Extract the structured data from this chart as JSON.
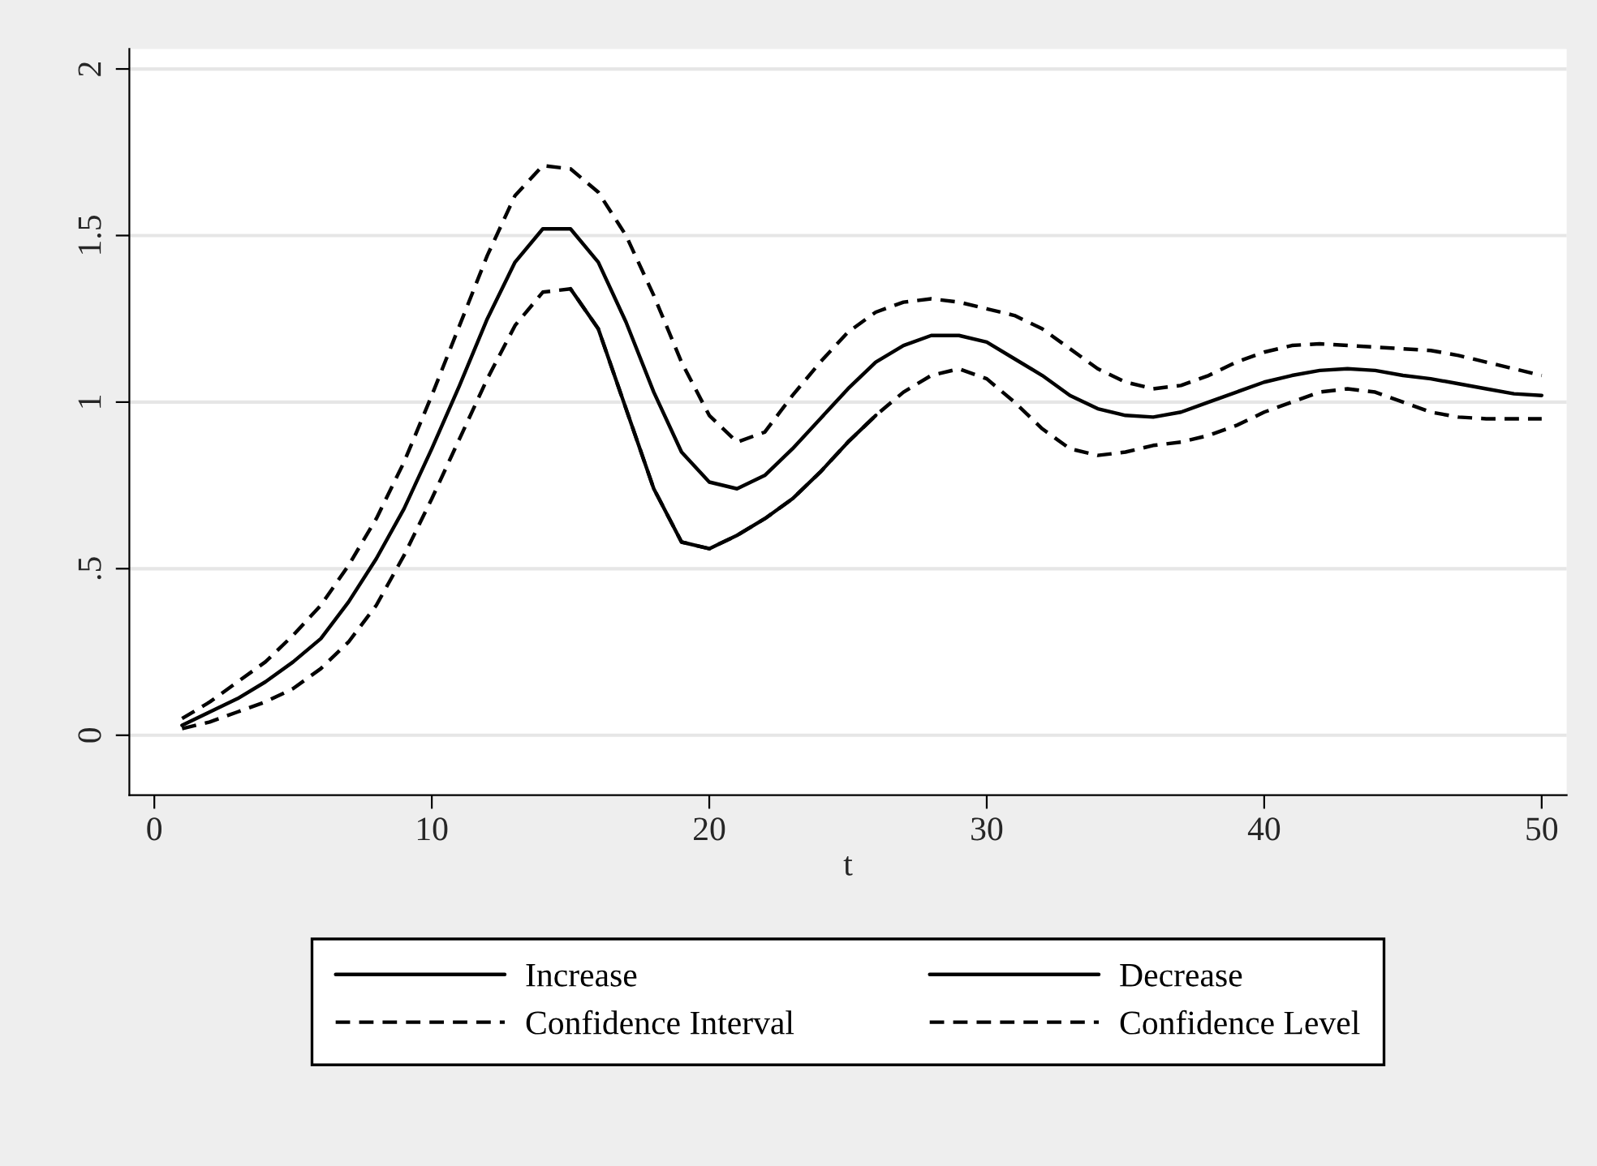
{
  "chart_data": {
    "type": "line",
    "xlabel": "t",
    "x": [
      1,
      2,
      3,
      4,
      5,
      6,
      7,
      8,
      9,
      10,
      11,
      12,
      13,
      14,
      15,
      16,
      17,
      18,
      19,
      20,
      21,
      22,
      23,
      24,
      25,
      26,
      27,
      28,
      29,
      30,
      31,
      32,
      33,
      34,
      35,
      36,
      37,
      38,
      39,
      40,
      41,
      42,
      43,
      44,
      45,
      46,
      47,
      48,
      49,
      50
    ],
    "series": [
      {
        "name": "Increase",
        "color": "#000000",
        "line_style": "solid",
        "values": [
          0.03,
          0.07,
          0.11,
          0.16,
          0.22,
          0.29,
          0.4,
          0.53,
          0.68,
          0.86,
          1.05,
          1.25,
          1.42,
          1.52,
          1.52,
          1.42,
          1.24,
          1.03,
          0.85,
          0.76,
          0.74,
          0.78,
          0.86,
          0.95,
          1.04,
          1.12,
          1.17,
          1.2,
          1.2,
          1.18,
          1.13,
          1.08,
          1.02,
          0.98,
          0.96,
          0.955,
          0.97,
          1.0,
          1.03,
          1.06,
          1.08,
          1.095,
          1.1,
          1.095,
          1.08,
          1.07,
          1.055,
          1.04,
          1.025,
          1.02
        ]
      },
      {
        "name": "Decrease",
        "color": "#000000",
        "line_style": "solid",
        "values": [
          null,
          null,
          null,
          null,
          null,
          null,
          null,
          null,
          null,
          null,
          null,
          null,
          null,
          null,
          1.34,
          1.22,
          0.98,
          0.74,
          0.58,
          0.56,
          0.6,
          0.65,
          0.71,
          0.79,
          0.88,
          0.96,
          null,
          null,
          null,
          null,
          null,
          null,
          null,
          null,
          null,
          null,
          null,
          null,
          null,
          null,
          null,
          null,
          null,
          null,
          null,
          null,
          null,
          null,
          null,
          null
        ]
      },
      {
        "name": "Confidence Interval",
        "color": "#000000",
        "line_style": "dashed",
        "values": [
          0.05,
          0.1,
          0.16,
          0.22,
          0.3,
          0.39,
          0.51,
          0.65,
          0.82,
          1.02,
          1.23,
          1.44,
          1.62,
          1.71,
          1.7,
          1.63,
          1.5,
          1.32,
          1.12,
          0.96,
          0.88,
          0.91,
          1.02,
          1.12,
          1.21,
          1.27,
          1.3,
          1.31,
          1.3,
          1.28,
          1.26,
          1.22,
          1.16,
          1.1,
          1.06,
          1.04,
          1.05,
          1.08,
          1.12,
          1.15,
          1.17,
          1.175,
          1.17,
          1.165,
          1.16,
          1.155,
          1.14,
          1.12,
          1.1,
          1.08
        ]
      },
      {
        "name": "Confidence Level",
        "color": "#000000",
        "line_style": "dashed",
        "values": [
          0.02,
          0.04,
          0.07,
          0.1,
          0.14,
          0.2,
          0.28,
          0.39,
          0.54,
          0.71,
          0.89,
          1.07,
          1.23,
          1.33,
          1.34,
          1.22,
          0.98,
          0.74,
          0.58,
          0.56,
          0.6,
          0.65,
          0.71,
          0.79,
          0.88,
          0.96,
          1.03,
          1.08,
          1.1,
          1.07,
          1.0,
          0.92,
          0.86,
          0.84,
          0.85,
          0.87,
          0.88,
          0.9,
          0.93,
          0.97,
          1.0,
          1.03,
          1.04,
          1.03,
          1.0,
          0.97,
          0.955,
          0.95,
          0.95,
          0.95
        ]
      }
    ],
    "xlim": [
      -0.9,
      50.9
    ],
    "xticks": [
      0,
      10,
      20,
      30,
      40,
      50
    ],
    "ylim": [
      -0.18,
      2.06
    ],
    "yticks": [
      0,
      {
        "value": 0.5,
        "label": ".5"
      },
      1,
      {
        "value": 1.5,
        "label": "1.5"
      },
      2
    ],
    "grid": "y",
    "legend": "bottom",
    "marker": "none"
  }
}
